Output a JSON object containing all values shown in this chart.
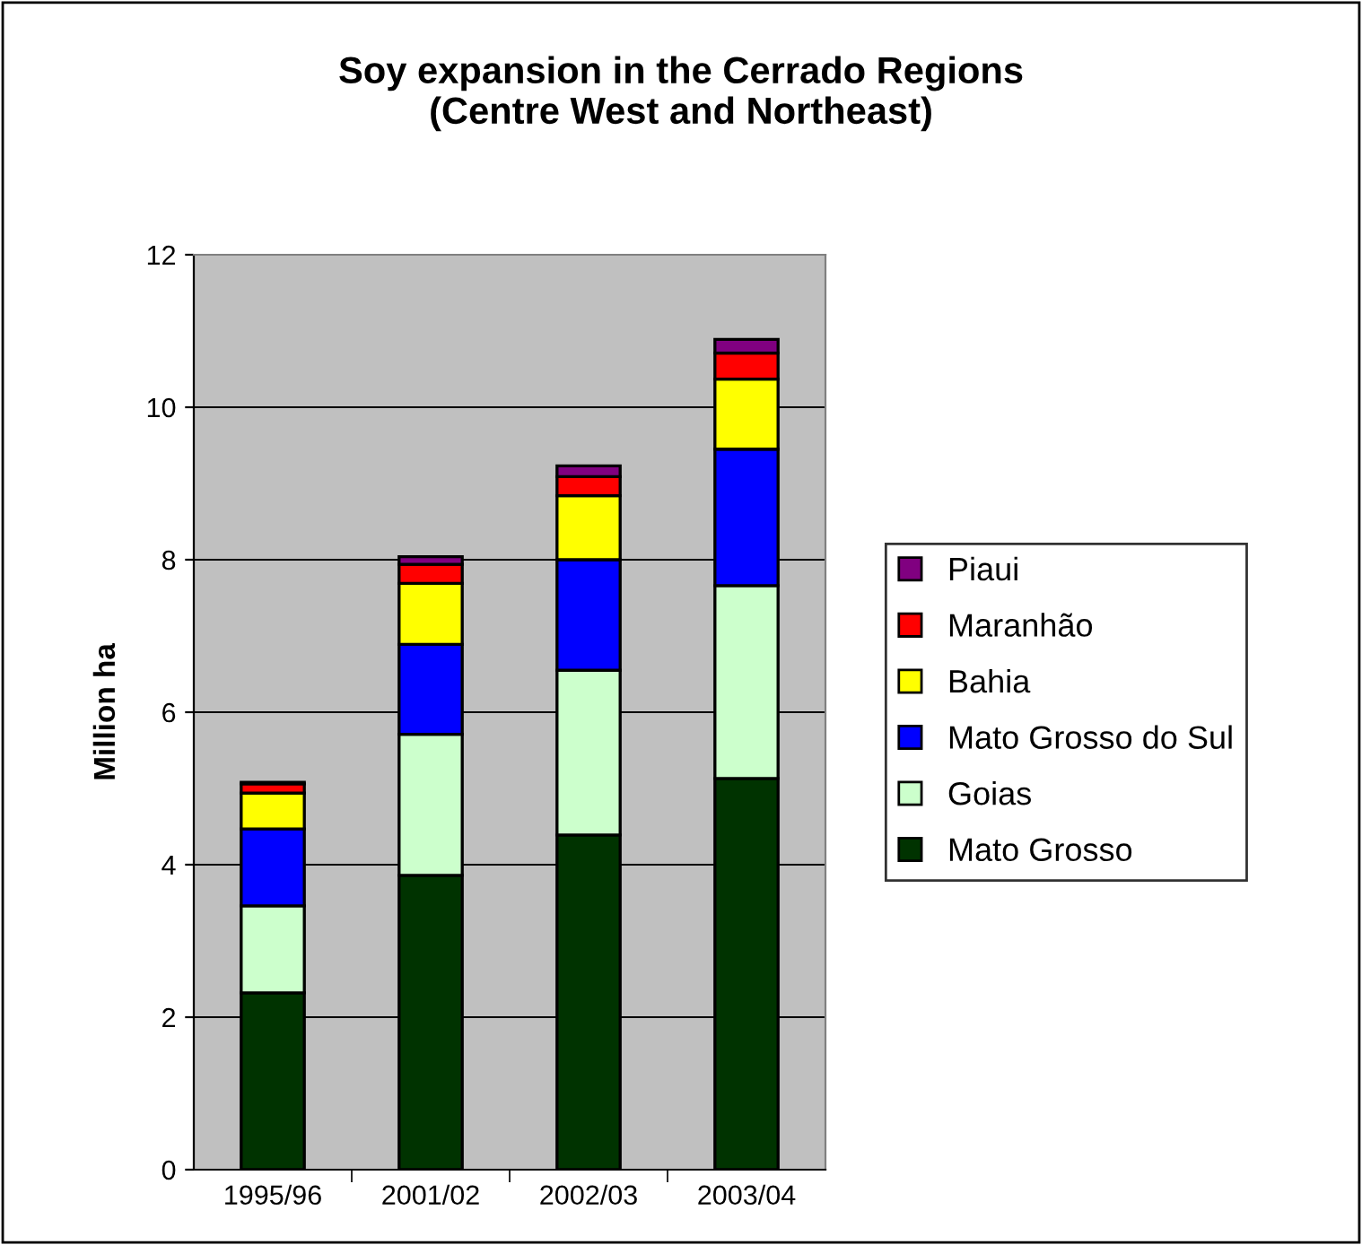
{
  "chart_data": {
    "type": "bar",
    "title": "Soy expansion in the Cerrado Regions\n(Centre West and Northeast)",
    "ylabel": "Million ha",
    "categories": [
      "1995/96",
      "2001/02",
      "2002/03",
      "2003/04"
    ],
    "stacked": true,
    "series": [
      {
        "name": "Mato Grosso",
        "color": "#003300",
        "values": [
          2.32,
          3.86,
          4.39,
          5.13
        ]
      },
      {
        "name": "Goias",
        "color": "#ccffcc",
        "values": [
          1.14,
          1.85,
          2.16,
          2.53
        ]
      },
      {
        "name": "Mato Grosso do Sul",
        "color": "#0000ff",
        "values": [
          1.01,
          1.18,
          1.45,
          1.79
        ]
      },
      {
        "name": "Bahia",
        "color": "#ffff00",
        "values": [
          0.47,
          0.8,
          0.84,
          0.92
        ]
      },
      {
        "name": "Maranhão",
        "color": "#ff0000",
        "values": [
          0.12,
          0.25,
          0.25,
          0.34
        ]
      },
      {
        "name": "Piaui",
        "color": "#800080",
        "values": [
          0.02,
          0.1,
          0.14,
          0.18
        ]
      }
    ],
    "ylim": [
      0,
      12
    ],
    "yticks": [
      0,
      2,
      4,
      6,
      8,
      10,
      12
    ],
    "grid": "y",
    "legend": "right"
  }
}
